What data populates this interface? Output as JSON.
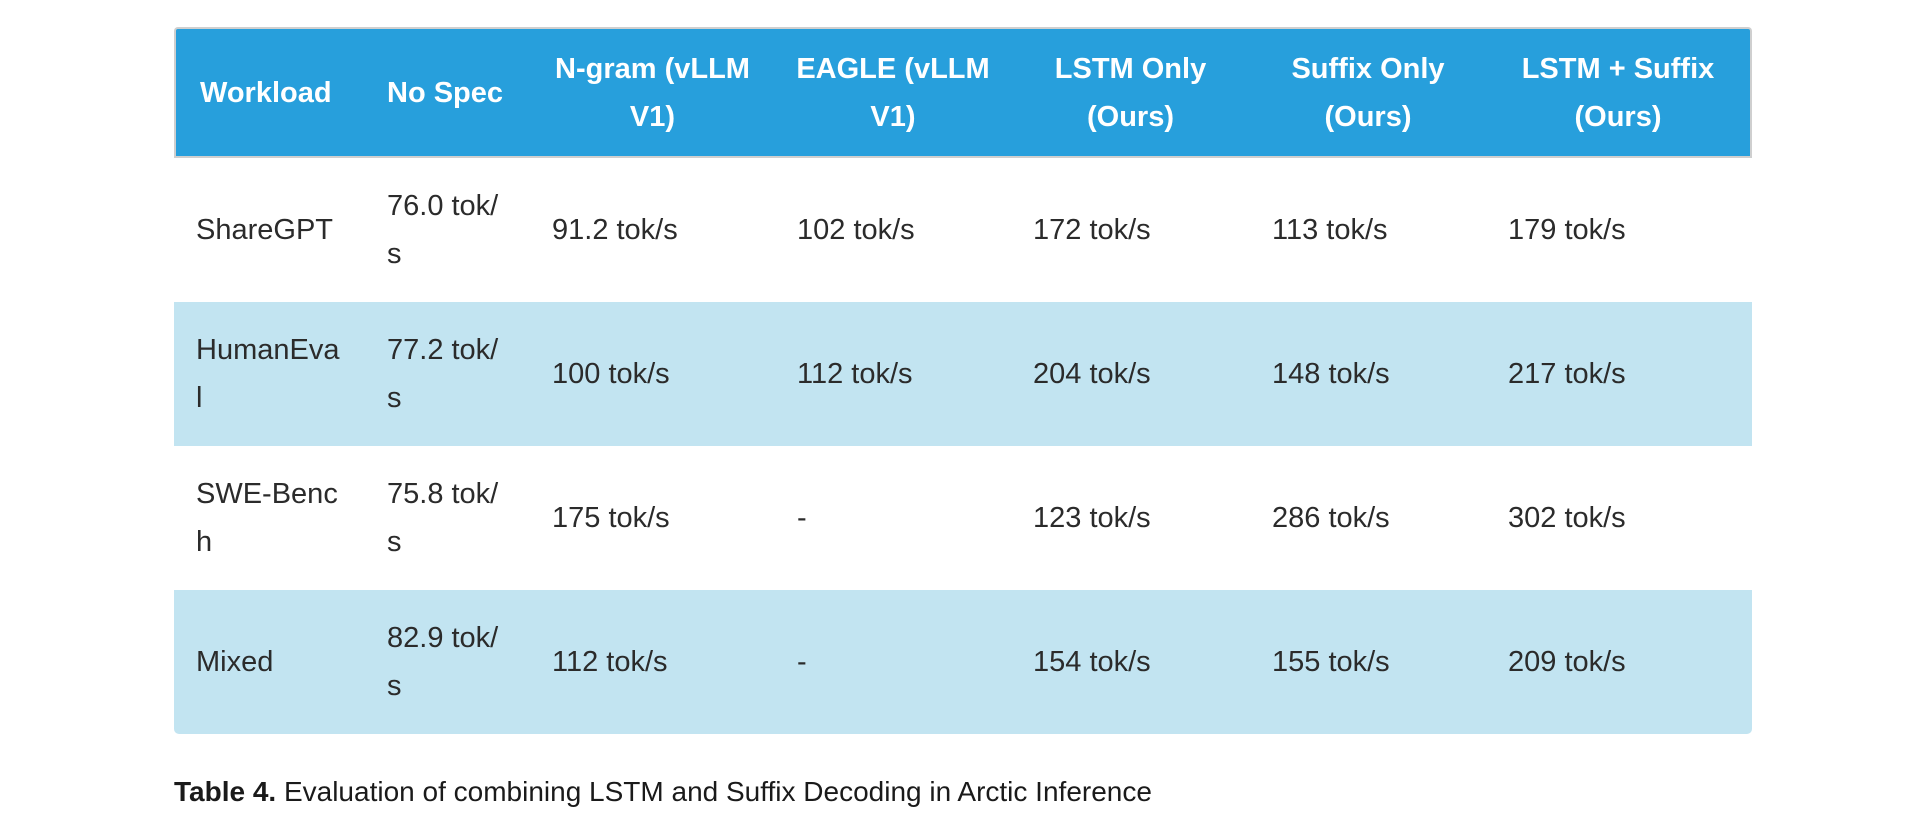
{
  "table": {
    "headers": [
      "Workload",
      "No Spec",
      "N-gram (vLLM V1)",
      "EAGLE (vLLM V1)",
      "LSTM Only (Ours)",
      "Suffix Only (Ours)",
      "LSTM + Suffix (Ours)"
    ],
    "rows": [
      [
        "ShareGPT",
        "76.0 tok/s",
        "91.2 tok/s",
        "102 tok/s",
        "172 tok/s",
        "113 tok/s",
        "179 tok/s"
      ],
      [
        "HumanEval",
        "77.2 tok/s",
        "100 tok/s",
        "112 tok/s",
        "204 tok/s",
        "148 tok/s",
        "217 tok/s"
      ],
      [
        "SWE-Bench",
        "75.8 tok/s",
        "175 tok/s",
        "-",
        "123 tok/s",
        "286 tok/s",
        "302 tok/s"
      ],
      [
        "Mixed",
        "82.9 tok/s",
        "112 tok/s",
        "-",
        "154 tok/s",
        "155 tok/s",
        "209 tok/s"
      ]
    ]
  },
  "caption": {
    "label": "Table 4.",
    "text": " Evaluation of combining LSTM and Suffix Decoding in Arctic Inference"
  },
  "colors": {
    "header_bg": "#279fdc",
    "header_text": "#ffffff",
    "alt_row_bg": "#c2e4f1",
    "body_text": "#2b2b2b"
  }
}
